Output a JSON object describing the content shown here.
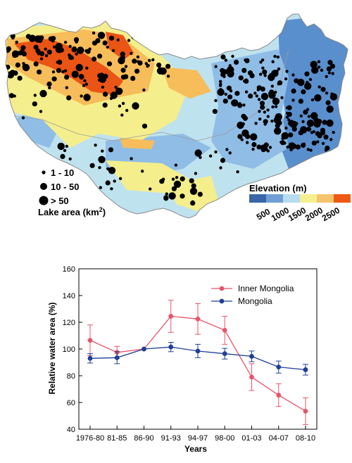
{
  "map": {
    "legend_size": {
      "title_prefix": "Lake area (km",
      "title_sup": "2",
      "title_suffix": ")",
      "items": [
        "1 - 10",
        "10 - 50",
        "> 50"
      ]
    },
    "legend_elevation": {
      "title": "Elevation (m)",
      "ticks": [
        "500",
        "1000",
        "1500",
        "2000",
        "2500"
      ],
      "colors": [
        "#3a66a8",
        "#6f9fd4",
        "#b6dcee",
        "#f6ef8f",
        "#f7c46e",
        "#ee5a12"
      ]
    },
    "colors": {
      "low": "#5a8fce",
      "mid_low": "#8fbde6",
      "plain": "#bfe2ef",
      "hill": "#f5ee8c",
      "high": "#f6bd5a",
      "peak": "#ea5414",
      "lake": "#000000",
      "border": "#8a8a8a"
    }
  },
  "chart_data": {
    "type": "line",
    "categories": [
      "1976-80",
      "81-85",
      "86-90",
      "91-93",
      "94-97",
      "98-00",
      "01-03",
      "04-07",
      "08-10"
    ],
    "series": [
      {
        "name": "Inner Mongolia",
        "color": "#e8546a",
        "values": [
          106.5,
          97.5,
          100,
          124.5,
          122.5,
          114,
          79,
          65.5,
          53.5
        ],
        "errors": [
          11.5,
          4.5,
          0,
          12,
          11.5,
          10.5,
          10,
          8.5,
          10
        ]
      },
      {
        "name": "Mongolia",
        "color": "#1f3f99",
        "values": [
          93,
          93.5,
          100,
          101.5,
          98.5,
          96.5,
          94.5,
          86.5,
          84.5
        ],
        "errors": [
          3.5,
          4.5,
          0,
          3.5,
          5,
          4,
          4,
          4.5,
          4
        ]
      }
    ],
    "xlabel": "Years",
    "ylabel": "Relative water area (%)",
    "ylim": [
      40,
      160
    ],
    "yticks": [
      40,
      60,
      80,
      100,
      120,
      140,
      160
    ],
    "legend": "top-right",
    "grid": false
  }
}
